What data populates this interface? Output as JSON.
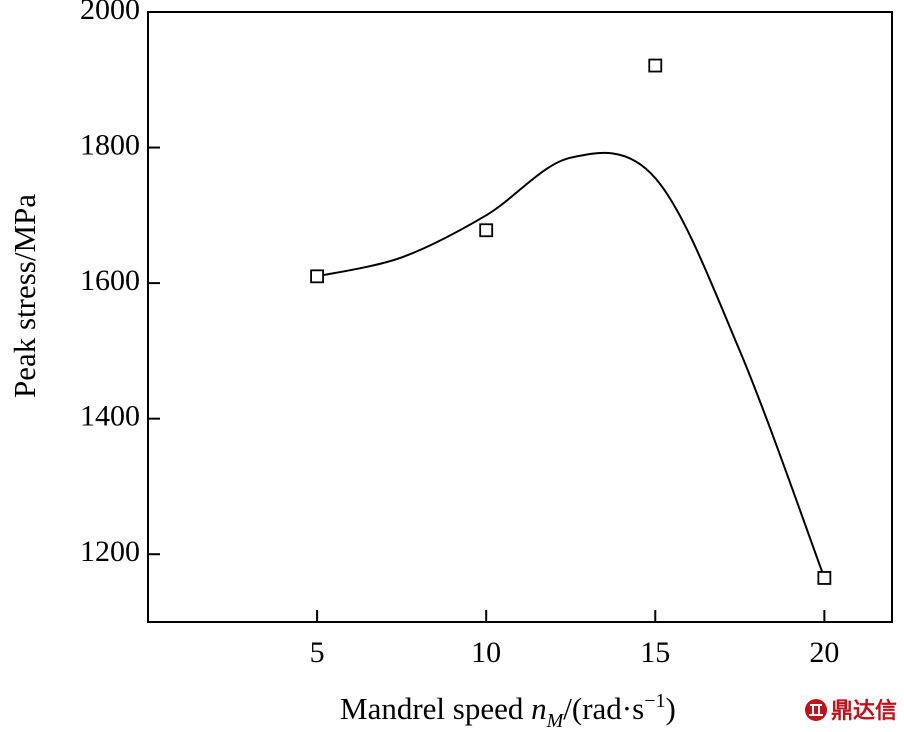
{
  "chart_data": {
    "type": "scatter",
    "xlabel_main": "Mandrel speed ",
    "xlabel_var": "n",
    "xlabel_sub": "M",
    "xlabel_unit": "/(rad·s",
    "xlabel_exp": "−1",
    "xlabel_close": ")",
    "ylabel": "Peak stress/MPa",
    "xlim": [
      0,
      22
    ],
    "ylim": [
      1100,
      2000
    ],
    "xticks": [
      5,
      10,
      15,
      20
    ],
    "yticks": [
      1200,
      1400,
      1600,
      1800,
      2000
    ],
    "series": [
      {
        "marker": "open-square",
        "x": [
          5,
          10,
          15,
          20
        ],
        "y": [
          1610,
          1678,
          1921,
          1165
        ]
      }
    ],
    "fit_curve": {
      "style": "smooth-line",
      "x": [
        5,
        7.5,
        10,
        12.5,
        15,
        17.5,
        20
      ],
      "y": [
        1610,
        1638,
        1700,
        1785,
        1755,
        1500,
        1165
      ]
    }
  },
  "watermark": {
    "text": "鼎达信",
    "color": "#c0121b"
  }
}
